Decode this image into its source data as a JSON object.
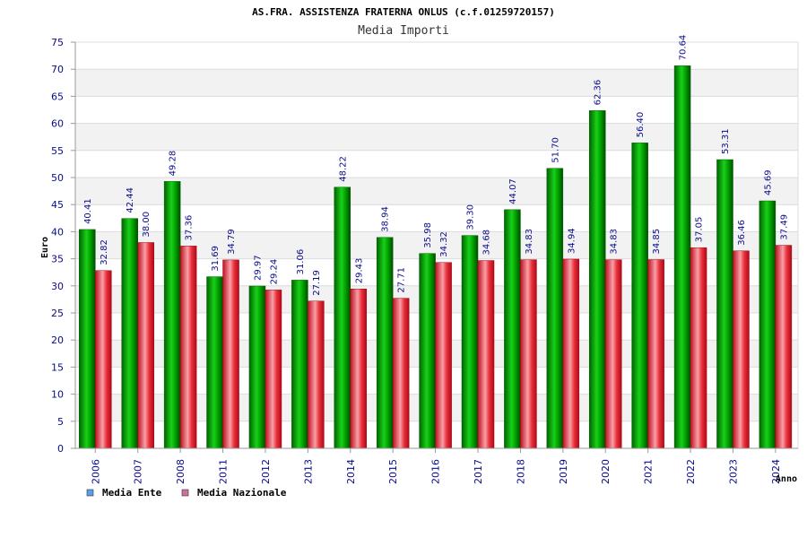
{
  "chart_data": {
    "type": "bar",
    "title": "AS.FRA. ASSISTENZA FRATERNA ONLUS (c.f.01259720157)",
    "subtitle": "Media Importi",
    "xlabel": "Anno",
    "ylabel": "Euro",
    "ylim": [
      0,
      75
    ],
    "yticks": [
      0,
      5,
      10,
      15,
      20,
      25,
      30,
      35,
      40,
      45,
      50,
      55,
      60,
      65,
      70,
      75
    ],
    "grid": true,
    "legend_position": "bottom-left",
    "categories": [
      "2006",
      "2007",
      "2008",
      "2011",
      "2012",
      "2013",
      "2014",
      "2015",
      "2016",
      "2017",
      "2018",
      "2019",
      "2020",
      "2021",
      "2022",
      "2023",
      "2024"
    ],
    "series": [
      {
        "name": "Media Ente",
        "color": "#00a000",
        "legend_color": "#5aa0e6",
        "values": [
          40.41,
          42.44,
          49.28,
          31.69,
          29.97,
          31.06,
          48.22,
          38.94,
          35.98,
          39.3,
          44.07,
          51.7,
          62.36,
          56.4,
          70.64,
          53.31,
          45.69
        ]
      },
      {
        "name": "Media Nazionale",
        "color": "#e8202a",
        "legend_color": "#d070a0",
        "values": [
          32.82,
          38.0,
          37.36,
          34.79,
          29.24,
          27.19,
          29.43,
          27.71,
          34.32,
          34.68,
          34.83,
          34.94,
          34.83,
          34.85,
          37.05,
          36.46,
          37.49
        ]
      }
    ]
  }
}
